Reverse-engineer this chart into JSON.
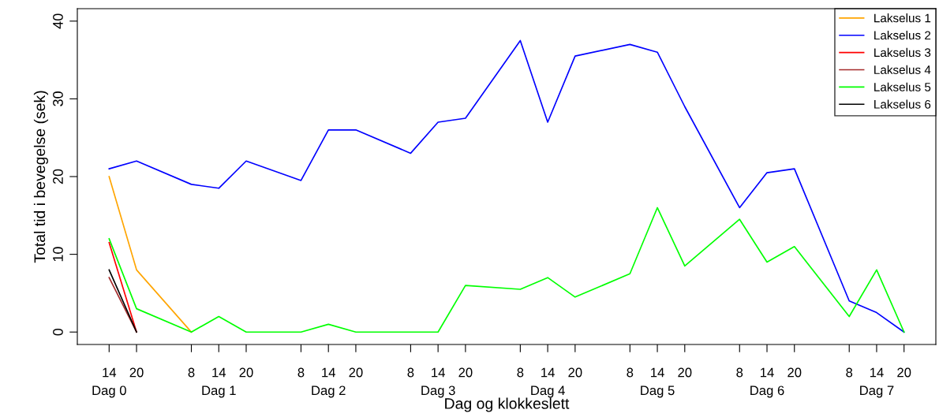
{
  "chart_data": {
    "type": "line",
    "xlabel": "Dag og klokkeslett",
    "ylabel": "Total tid i bevegelse (sek)",
    "categories": [
      "14\nDag 0",
      "20",
      null,
      "8",
      "14\nDag 1",
      "20",
      null,
      "8",
      "14\nDag 2",
      "20",
      null,
      "8",
      "14\nDag 3",
      "20",
      null,
      "8",
      "14\nDag 4",
      "20",
      null,
      "8",
      "14\nDag 5",
      "20",
      null,
      "8",
      "14\nDag 6",
      "20",
      null,
      "8",
      "14\nDag 7",
      "20"
    ],
    "series": [
      {
        "name": "Lakselus 1",
        "color": "#ffa500",
        "values": [
          20,
          8,
          null,
          0,
          null,
          null,
          null,
          null,
          null,
          null,
          null,
          null,
          null,
          null,
          null,
          null,
          null,
          null,
          null,
          null,
          null,
          null,
          null,
          null,
          null,
          null,
          null,
          null,
          null,
          null
        ]
      },
      {
        "name": "Lakselus 2",
        "color": "#0000ff",
        "values": [
          21,
          22,
          null,
          19,
          18.5,
          22,
          null,
          19.5,
          26,
          26,
          null,
          23,
          27,
          27.5,
          null,
          37.5,
          27,
          35.5,
          null,
          37,
          36,
          29,
          null,
          16,
          20.5,
          21,
          null,
          4,
          2.5,
          0
        ]
      },
      {
        "name": "Lakselus 3",
        "color": "#ff0000",
        "values": [
          11.5,
          0,
          null,
          null,
          null,
          null,
          null,
          null,
          null,
          null,
          null,
          null,
          null,
          null,
          null,
          null,
          null,
          null,
          null,
          null,
          null,
          null,
          null,
          null,
          null,
          null,
          null,
          null,
          null,
          null
        ]
      },
      {
        "name": "Lakselus 4",
        "color": "#a52a2a",
        "values": [
          7,
          0,
          null,
          null,
          null,
          null,
          null,
          null,
          null,
          null,
          null,
          null,
          null,
          null,
          null,
          null,
          null,
          null,
          null,
          null,
          null,
          null,
          null,
          null,
          null,
          null,
          null,
          null,
          null,
          null
        ]
      },
      {
        "name": "Lakselus 5",
        "color": "#00ff00",
        "values": [
          12,
          3,
          null,
          0,
          2,
          0,
          null,
          0,
          1,
          0,
          null,
          0,
          0,
          6,
          null,
          5.5,
          7,
          4.5,
          null,
          7.5,
          16,
          8.5,
          null,
          14.5,
          9,
          11,
          null,
          2,
          8,
          0
        ]
      },
      {
        "name": "Lakselus 6",
        "color": "#000000",
        "values": [
          8,
          0,
          null,
          null,
          null,
          null,
          null,
          null,
          null,
          null,
          null,
          null,
          null,
          null,
          null,
          null,
          null,
          null,
          null,
          null,
          null,
          null,
          null,
          null,
          null,
          null,
          null,
          null,
          null,
          null
        ]
      }
    ],
    "ylim": [
      -1.6,
      41.6
    ],
    "yticks": [
      0,
      10,
      20,
      30,
      40
    ],
    "grid": false,
    "legend": "top right",
    "marker": "none",
    "line_style": "solid"
  }
}
